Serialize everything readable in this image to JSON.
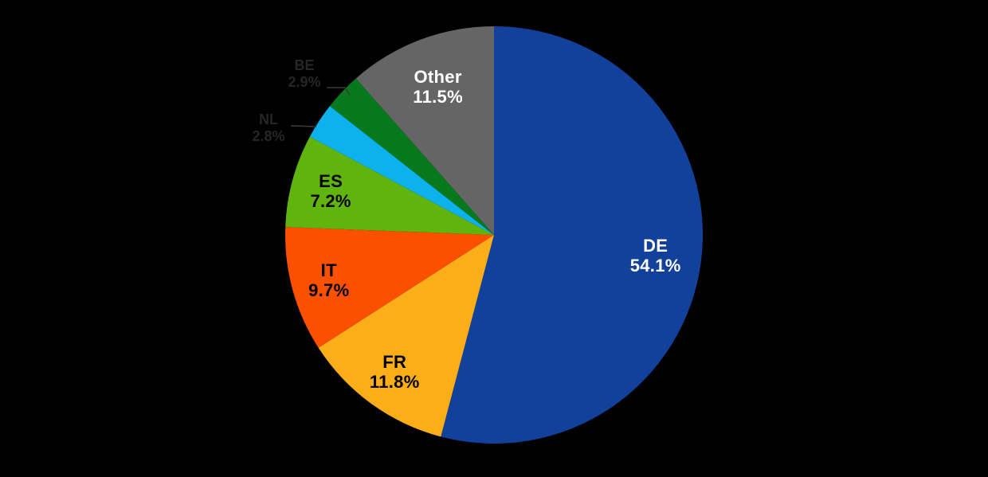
{
  "chart_data": {
    "type": "pie",
    "title": "",
    "background_color": "#000000",
    "start_angle": "top",
    "direction": "clockwise",
    "legend": "none",
    "total_pct": 100.0,
    "slices": [
      {
        "code": "DE",
        "label": "DE",
        "pct": 54.1,
        "pct_label": "54.1%",
        "color": "#12419C",
        "label_color": "#FFFFFF",
        "label_placement": "inside"
      },
      {
        "code": "FR",
        "label": "FR",
        "pct": 11.8,
        "pct_label": "11.8%",
        "color": "#FBAE17",
        "label_color": "#000000",
        "label_placement": "inside"
      },
      {
        "code": "IT",
        "label": "IT",
        "pct": 9.7,
        "pct_label": "9.7%",
        "color": "#FB5000",
        "label_color": "#000000",
        "label_placement": "inside"
      },
      {
        "code": "ES",
        "label": "ES",
        "pct": 7.2,
        "pct_label": "7.2%",
        "color": "#5FB40E",
        "label_color": "#000000",
        "label_placement": "inside"
      },
      {
        "code": "NL",
        "label": "NL",
        "pct": 2.8,
        "pct_label": "2.8%",
        "color": "#0DB1EC",
        "label_color": "#262626",
        "label_placement": "outside"
      },
      {
        "code": "BE",
        "label": "BE",
        "pct": 2.9,
        "pct_label": "2.9%",
        "color": "#06791C",
        "label_color": "#262626",
        "label_placement": "outside"
      },
      {
        "code": "Other",
        "label": "Other",
        "pct": 11.5,
        "pct_label": "11.5%",
        "color": "#656565",
        "label_color": "#FFFFFF",
        "label_placement": "inside"
      }
    ],
    "leader_line_color": "#3A3A3A"
  }
}
